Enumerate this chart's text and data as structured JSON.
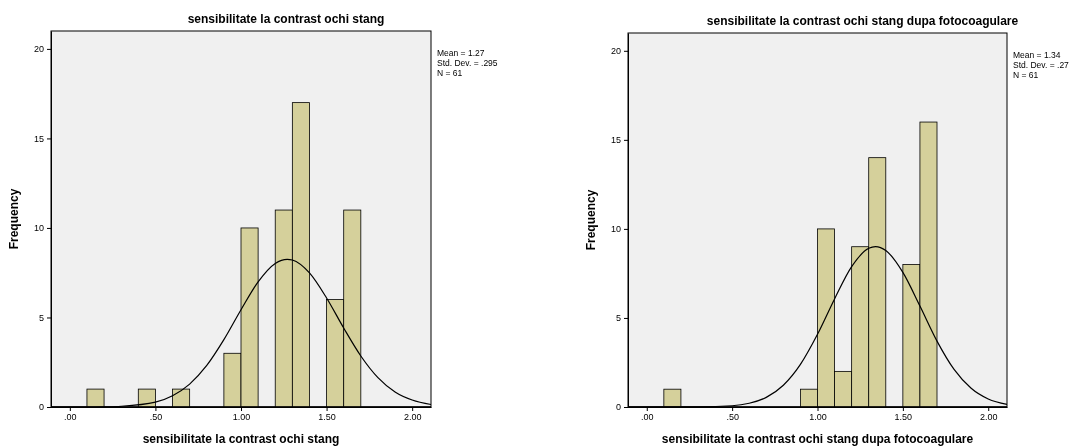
{
  "chart_data": [
    {
      "type": "histogram",
      "title": "sensibilitate la contrast ochi stang",
      "xlabel": "sensibilitate la contrast ochi stang",
      "ylabel": "Frequency",
      "annotations": [
        "Mean = 1.27",
        "Std. Dev. = .295",
        "N = 61"
      ],
      "xlim": [
        -0.11,
        2.11
      ],
      "ylim": [
        0,
        21
      ],
      "xticks": [
        {
          "value": 0,
          "label": ".00"
        },
        {
          "value": 0.5,
          "label": ".50"
        },
        {
          "value": 1,
          "label": "1.00"
        },
        {
          "value": 1.5,
          "label": "1.50"
        },
        {
          "value": 2,
          "label": "2.00"
        }
      ],
      "yticks": [
        0,
        5,
        10,
        15,
        20
      ],
      "series": [
        {
          "type": "histogram",
          "color": "#d5d09b",
          "bins": [
            0.1,
            0.2,
            0.3,
            0.4,
            0.5,
            0.6,
            0.7,
            0.8,
            0.9,
            1.0,
            1.1,
            1.2,
            1.3,
            1.4,
            1.5,
            1.6,
            1.7
          ],
          "values": [
            1,
            0,
            0,
            1,
            0,
            1,
            0,
            0,
            3,
            10,
            0,
            11,
            17,
            0,
            6,
            11
          ]
        },
        {
          "type": "line",
          "color": "#000000",
          "x": [
            -0.11,
            0.1,
            0.2,
            0.3,
            0.5,
            0.6,
            0.7,
            0.8,
            0.9,
            1.0,
            1.1,
            1.2,
            1.27,
            1.3,
            1.4,
            1.5,
            1.6,
            1.7,
            1.8,
            1.9,
            2.0,
            2.11
          ],
          "values": [
            0,
            0,
            0.01,
            0.04,
            0.27,
            0.63,
            1.28,
            2.32,
            3.76,
            5.43,
            6.99,
            8.02,
            8.25,
            8.21,
            7.49,
            6.09,
            4.41,
            2.85,
            1.64,
            0.84,
            0.39,
            0.14
          ]
        }
      ]
    },
    {
      "type": "histogram",
      "title": "sensibilitate la contrast ochi stang dupa fotocoagulare",
      "xlabel": "sensibilitate la contrast ochi stang dupa fotocoagulare",
      "ylabel": "Frequency",
      "annotations": [
        "Mean = 1.34",
        "Std. Dev. = .27",
        "N = 61"
      ],
      "xlim": [
        -0.11,
        2.11
      ],
      "ylim": [
        0,
        21
      ],
      "xticks": [
        {
          "value": 0,
          "label": ".00"
        },
        {
          "value": 0.5,
          "label": ".50"
        },
        {
          "value": 1,
          "label": "1.00"
        },
        {
          "value": 1.5,
          "label": "1.50"
        },
        {
          "value": 2,
          "label": "2.00"
        }
      ],
      "yticks": [
        0,
        5,
        10,
        15,
        20
      ],
      "series": [
        {
          "type": "histogram",
          "color": "#d5d09b",
          "bins": [
            0.1,
            0.2,
            0.3,
            0.4,
            0.5,
            0.6,
            0.7,
            0.8,
            0.9,
            1.0,
            1.1,
            1.2,
            1.3,
            1.4,
            1.5,
            1.6,
            1.7
          ],
          "values": [
            1,
            0,
            0,
            0,
            0,
            0,
            0,
            0,
            1,
            10,
            2,
            9,
            14,
            0,
            8,
            16
          ]
        },
        {
          "type": "line",
          "color": "#000000",
          "x": [
            -0.11,
            0.3,
            0.5,
            0.6,
            0.7,
            0.8,
            0.9,
            1.0,
            1.1,
            1.2,
            1.3,
            1.34,
            1.4,
            1.5,
            1.6,
            1.7,
            1.8,
            1.9,
            2.0,
            2.11
          ],
          "values": [
            0,
            0.01,
            0.07,
            0.21,
            0.54,
            1.22,
            2.39,
            4.08,
            6.07,
            7.88,
            8.91,
            9.01,
            8.79,
            7.56,
            5.67,
            3.7,
            2.11,
            1.05,
            0.45,
            0.15
          ]
        }
      ]
    }
  ]
}
